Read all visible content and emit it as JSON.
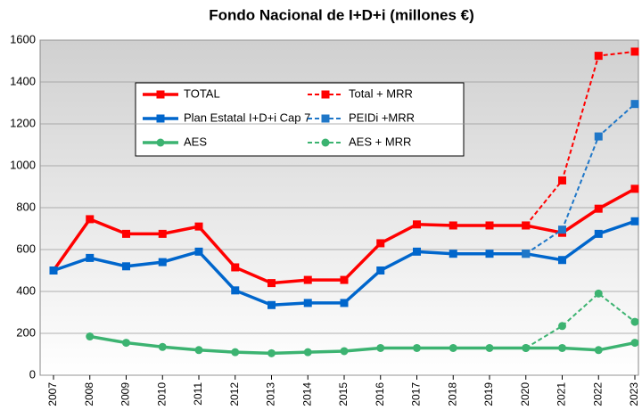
{
  "chart_data": {
    "type": "line",
    "title": "Fondo Nacional de I+D+i (millones €)",
    "categories": [
      "2007",
      "2008",
      "2009",
      "2010",
      "2011",
      "2012",
      "2013",
      "2014",
      "2015",
      "2016",
      "2017",
      "2018",
      "2019",
      "2020",
      "2021",
      "2022",
      "2023"
    ],
    "ylim": [
      0,
      1600
    ],
    "yticks": [
      0,
      200,
      400,
      600,
      800,
      1000,
      1200,
      1400,
      1600
    ],
    "grid": true,
    "series": [
      {
        "name": "TOTAL",
        "color": "#ff0000",
        "dashed": false,
        "marker": "square",
        "values": [
          500,
          745,
          675,
          675,
          710,
          515,
          440,
          455,
          455,
          630,
          720,
          715,
          715,
          715,
          680,
          795,
          890
        ]
      },
      {
        "name": "Total + MRR",
        "color": "#ff0000",
        "dashed": true,
        "marker": "square",
        "values": [
          null,
          null,
          null,
          null,
          null,
          null,
          null,
          null,
          null,
          null,
          null,
          null,
          null,
          715,
          930,
          1525,
          1545
        ]
      },
      {
        "name": "Plan Estatal I+D+i Cap 7",
        "color": "#0066cc",
        "dashed": false,
        "marker": "square",
        "values": [
          500,
          560,
          520,
          540,
          590,
          405,
          335,
          345,
          345,
          500,
          590,
          580,
          580,
          580,
          550,
          675,
          735
        ]
      },
      {
        "name": "PEIDi +MRR",
        "color": "#1f77c8",
        "dashed": true,
        "marker": "square",
        "values": [
          null,
          null,
          null,
          null,
          null,
          null,
          null,
          null,
          null,
          null,
          null,
          null,
          null,
          580,
          695,
          1140,
          1295
        ]
      },
      {
        "name": "AES",
        "color": "#3cb371",
        "dashed": false,
        "marker": "circle",
        "values": [
          null,
          185,
          155,
          135,
          120,
          110,
          105,
          110,
          115,
          130,
          130,
          130,
          130,
          130,
          130,
          120,
          155
        ]
      },
      {
        "name": "AES + MRR",
        "color": "#3cb371",
        "dashed": true,
        "marker": "circle",
        "values": [
          null,
          null,
          null,
          null,
          null,
          null,
          null,
          null,
          null,
          null,
          null,
          null,
          null,
          130,
          235,
          390,
          255
        ]
      }
    ]
  }
}
